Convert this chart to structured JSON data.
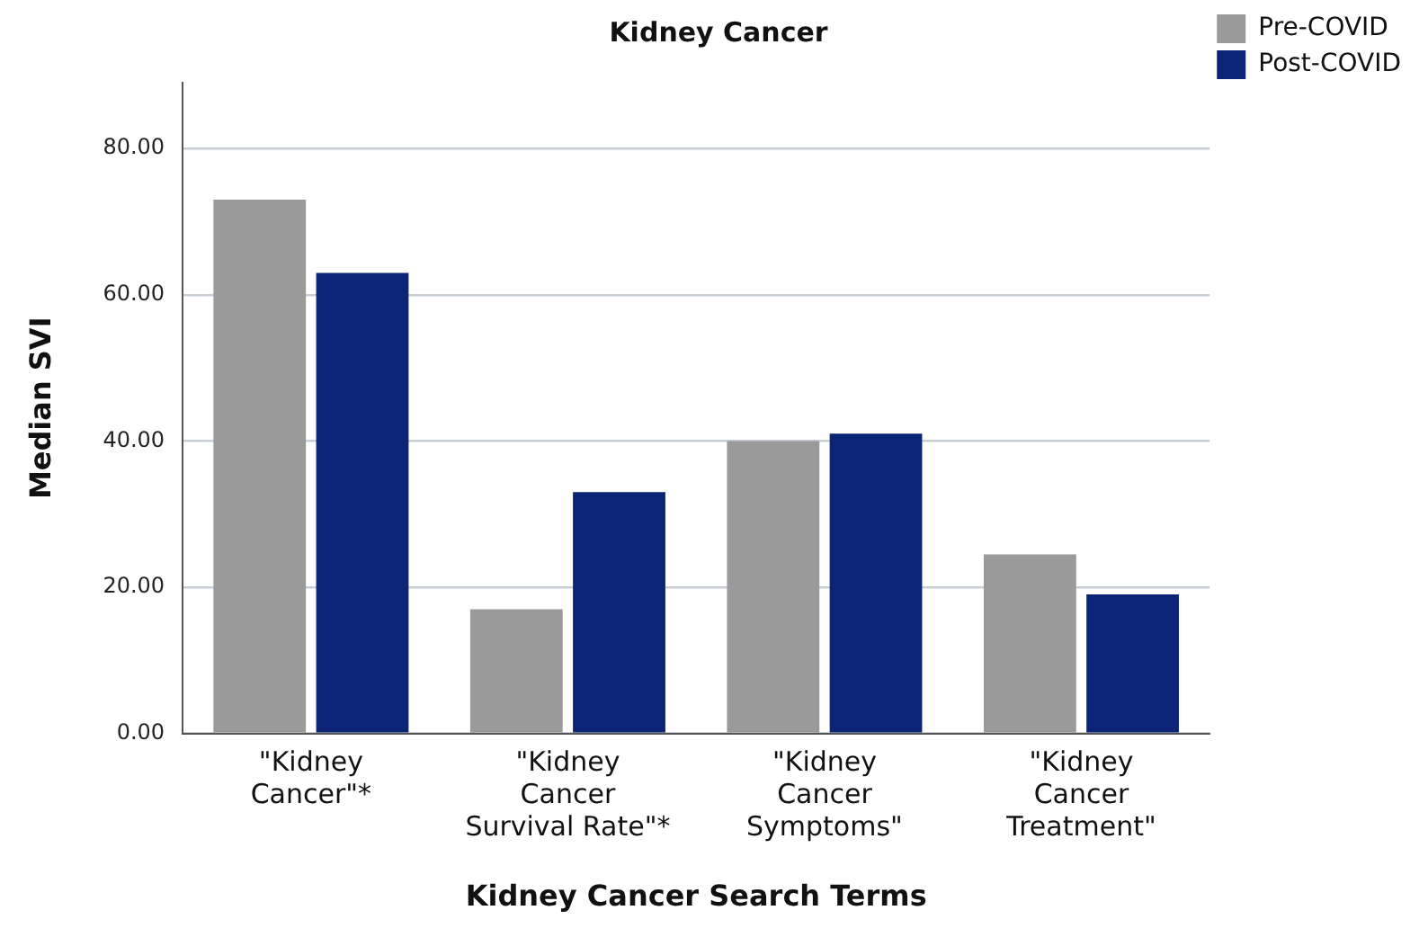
{
  "chart_data": {
    "type": "bar",
    "title": "Kidney Cancer",
    "xlabel": "Kidney Cancer Search Terms",
    "ylabel": "Median SVI",
    "categories": [
      "\"Kidney\nCancer\"*",
      "\"Kidney\nCancer\nSurvival Rate\"*",
      "\"Kidney\nCancer\nSymptoms\"",
      "\"Kidney\nCancer\nTreatment\""
    ],
    "series": [
      {
        "name": "Pre-COVID",
        "color": "#9a9a9a",
        "values": [
          73,
          17,
          40,
          24.5
        ]
      },
      {
        "name": "Post-COVID",
        "color": "#0b2475",
        "values": [
          63,
          33,
          41,
          19
        ]
      }
    ],
    "ylim": [
      0,
      89
    ],
    "yticks": [
      {
        "value": 0,
        "label": "0.00"
      },
      {
        "value": 20,
        "label": "20.00"
      },
      {
        "value": 40,
        "label": "40.00"
      },
      {
        "value": 60,
        "label": "60.00"
      },
      {
        "value": 80,
        "label": "80.00"
      }
    ],
    "grid": "y",
    "legend": "top right"
  }
}
